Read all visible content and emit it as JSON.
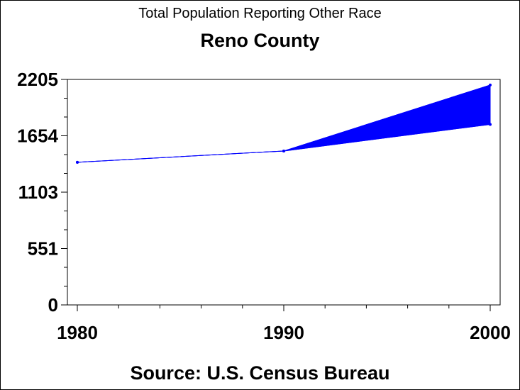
{
  "chart_data": {
    "type": "area",
    "title": "Total Population Reporting Other Race",
    "subtitle": "Reno County",
    "source": "Source: U.S. Census Bureau",
    "x": [
      1980,
      1990,
      2000
    ],
    "series": [
      {
        "values": [
          1395,
          1505,
          1765
        ]
      },
      {
        "values": [
          1395,
          1505,
          2150
        ]
      }
    ],
    "xticks": [
      "1980",
      "1990",
      "2000"
    ],
    "yticks": [
      "0",
      "551",
      "1103",
      "1654",
      "2205"
    ],
    "ylim": [
      0,
      2205
    ],
    "xlim": [
      1980,
      2000
    ],
    "colors": {
      "series": "#0000ff",
      "axis": "#000000"
    },
    "grid": false
  }
}
